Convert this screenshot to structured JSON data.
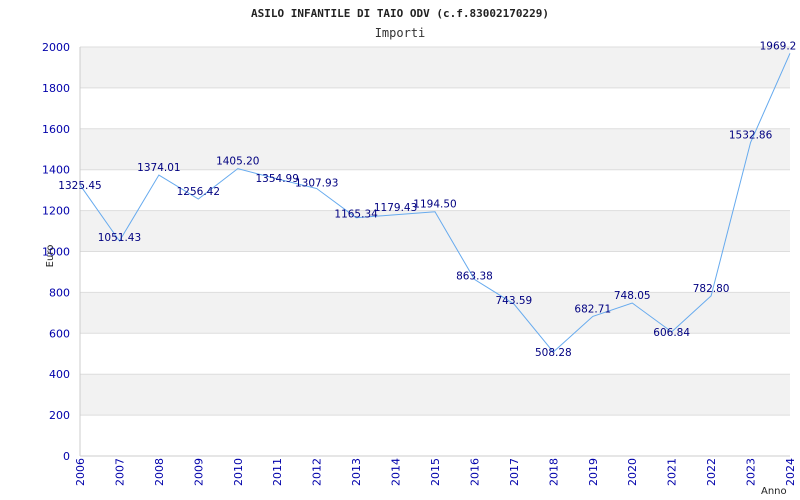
{
  "chart_data": {
    "type": "line",
    "title": "ASILO INFANTILE DI TAIO ODV (c.f.83002170229)",
    "subtitle": "Importi",
    "ylabel": "Euro",
    "xlabel": "Anno",
    "ylim": [
      0,
      2000
    ],
    "yticks": [
      "0",
      "200",
      "400",
      "600",
      "800",
      "1000",
      "1200",
      "1400",
      "1600",
      "1800",
      "2000"
    ],
    "grid": true,
    "series_color": "#66aaee",
    "band_color": "#f2f2f2",
    "x": [
      "2006",
      "2007",
      "2008",
      "2009",
      "2010",
      "2011",
      "2012",
      "2013",
      "2014",
      "2015",
      "2016",
      "2017",
      "2018",
      "2019",
      "2020",
      "2021",
      "2022",
      "2023",
      "2024"
    ],
    "points": [
      {
        "x": "2006",
        "value": 1325.45,
        "label": "1325.45"
      },
      {
        "x": "2007",
        "value": 1051.43,
        "label": "1051.43"
      },
      {
        "x": "2008",
        "value": 1374.01,
        "label": "1374.01"
      },
      {
        "x": "2009",
        "value": 1256.42,
        "label": "1256.42"
      },
      {
        "x": "2010",
        "value": 1405.2,
        "label": "1405.20"
      },
      {
        "x": "2011",
        "value": 1354.99,
        "label": "1354.99"
      },
      {
        "x": "2012",
        "value": 1307.93,
        "label": "1307.93"
      },
      {
        "x": "2013",
        "value": 1165.34,
        "label": "1165.34"
      },
      {
        "x": "2014",
        "value": 1179.43,
        "label": "1179.43"
      },
      {
        "x": "2015",
        "value": 1194.5,
        "label": "1194.50"
      },
      {
        "x": "2016",
        "value": 863.38,
        "label": "863.38"
      },
      {
        "x": "2017",
        "value": 743.59,
        "label": "743.59"
      },
      {
        "x": "2018",
        "value": 508.28,
        "label": "508.28"
      },
      {
        "x": "2019",
        "value": 682.71,
        "label": "682.71"
      },
      {
        "x": "2020",
        "value": 748.05,
        "label": "748.05"
      },
      {
        "x": "2021",
        "value": 606.84,
        "label": "606.84"
      },
      {
        "x": "2022",
        "value": 782.8,
        "label": "782.80"
      },
      {
        "x": "2023",
        "value": 1532.86,
        "label": "1532.86"
      },
      {
        "x": "2024",
        "value": 1969.2,
        "label": "1969.2"
      }
    ]
  }
}
